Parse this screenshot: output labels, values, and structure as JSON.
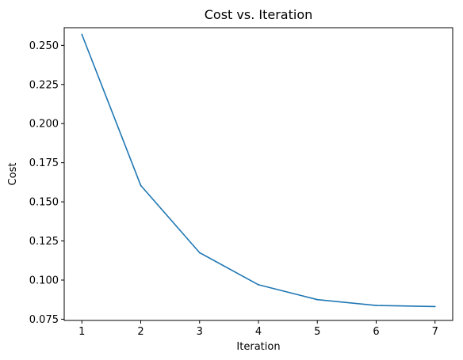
{
  "chart_data": {
    "type": "line",
    "title": "Cost vs. Iteration",
    "xlabel": "Iteration",
    "ylabel": "Cost",
    "xlim": [
      0.7,
      7.3
    ],
    "ylim": [
      0.0742,
      0.2613
    ],
    "xticks": [
      "1",
      "2",
      "3",
      "4",
      "5",
      "6",
      "7"
    ],
    "yticks": [
      "0.075",
      "0.100",
      "0.125",
      "0.150",
      "0.175",
      "0.200",
      "0.225",
      "0.250"
    ],
    "grid": false,
    "series": [
      {
        "color": "#1f77b4",
        "x": [
          1,
          2,
          3,
          4,
          5,
          6,
          7
        ],
        "y": [
          0.257,
          0.1605,
          0.1175,
          0.097,
          0.0875,
          0.0838,
          0.0831
        ]
      }
    ]
  }
}
